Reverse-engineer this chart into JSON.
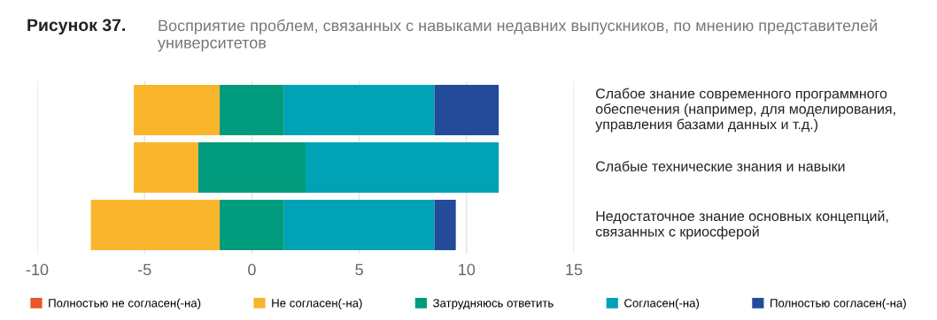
{
  "chart_data": {
    "type": "bar",
    "orientation": "horizontal",
    "title": "Рисунок 37.",
    "subtitle": "Восприятие проблем, связанных с навыками недавних выпускников, по мнению представителей университетов",
    "categories": [
      "Слабое знание современного программного обеспечения (например, для моделирования, управления базами данных и т.д.)",
      "Слабые технические знания и навыки",
      "Недостаточное знание основных концепций, связанных с криосферой"
    ],
    "series": [
      {
        "name": "Полностью не согласен(-на)",
        "color": "#e8572a",
        "values": [
          0,
          0,
          0
        ]
      },
      {
        "name": "Не согласен(-на)",
        "color": "#f9b62c",
        "values": [
          4,
          3,
          6
        ],
        "base": [
          -5.5,
          -5.5,
          -7.5
        ]
      },
      {
        "name": "Затрудняюсь ответить",
        "color": "#009b7d",
        "values": [
          3,
          5,
          3
        ],
        "base": [
          -1.5,
          -2.5,
          -1.5
        ]
      },
      {
        "name": "Согласен(-на)",
        "color": "#00a3b5",
        "values": [
          7,
          9,
          7
        ],
        "base": [
          1.5,
          2.5,
          1.5
        ]
      },
      {
        "name": "Полностью согласен(-на)",
        "color": "#234b9a",
        "values": [
          3,
          0,
          1
        ],
        "base": [
          8.5,
          null,
          8.5
        ]
      }
    ],
    "xlim": [
      -10,
      15
    ],
    "xticks": [
      -10,
      -5,
      0,
      5,
      10,
      15
    ],
    "grid": "x",
    "legend": "bottom"
  }
}
